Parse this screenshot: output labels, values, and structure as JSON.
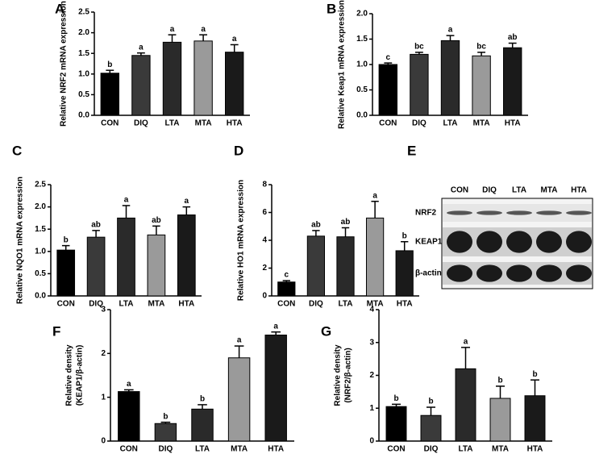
{
  "chart_data": [
    {
      "type": "bar",
      "label": "A",
      "ylabel": [
        "Relative NRF2 mRNA expression"
      ],
      "categories": [
        "CON",
        "DIQ",
        "LTA",
        "MTA",
        "HTA"
      ],
      "values": [
        1.02,
        1.45,
        1.77,
        1.8,
        1.53
      ],
      "errors": [
        0.07,
        0.06,
        0.18,
        0.15,
        0.18
      ],
      "letters": [
        "b",
        "a",
        "a",
        "a",
        "a"
      ],
      "colors": [
        "#000000",
        "#3a3a3a",
        "#2a2a2a",
        "#9a9a9a",
        "#1a1a1a"
      ],
      "ylim": [
        0,
        2.5
      ],
      "yticks": [
        {
          "value": 0,
          "label": "0.0"
        },
        0.5,
        {
          "value": 1,
          "label": "1.0"
        },
        1.5,
        {
          "value": 2,
          "label": "2.0"
        },
        2.5
      ]
    },
    {
      "type": "bar",
      "label": "B",
      "ylabel": [
        "Relative Keap1 mRNA expression"
      ],
      "categories": [
        "CON",
        "DIQ",
        "LTA",
        "MTA",
        "HTA"
      ],
      "values": [
        1.0,
        1.2,
        1.47,
        1.17,
        1.33
      ],
      "errors": [
        0.03,
        0.04,
        0.1,
        0.07,
        0.09
      ],
      "letters": [
        "c",
        "bc",
        "a",
        "bc",
        "ab"
      ],
      "colors": [
        "#000000",
        "#3a3a3a",
        "#2a2a2a",
        "#9a9a9a",
        "#1a1a1a"
      ],
      "ylim": [
        0,
        2
      ],
      "yticks": [
        {
          "value": 0,
          "label": "0.0"
        },
        0.5,
        {
          "value": 1,
          "label": "1.0"
        },
        1.5,
        {
          "value": 2,
          "label": "2.0"
        }
      ]
    },
    {
      "type": "bar",
      "label": "C",
      "ylabel": [
        "Relative NQO1 mRNA expression"
      ],
      "categories": [
        "CON",
        "DIQ",
        "LTA",
        "MTA",
        "HTA"
      ],
      "values": [
        1.03,
        1.32,
        1.75,
        1.37,
        1.82
      ],
      "errors": [
        0.1,
        0.15,
        0.28,
        0.2,
        0.18
      ],
      "letters": [
        "b",
        "ab",
        "a",
        "ab",
        "a"
      ],
      "colors": [
        "#000000",
        "#3a3a3a",
        "#2a2a2a",
        "#9a9a9a",
        "#1a1a1a"
      ],
      "ylim": [
        0,
        2.5
      ],
      "yticks": [
        {
          "value": 0,
          "label": "0.0"
        },
        0.5,
        {
          "value": 1,
          "label": "1.0"
        },
        1.5,
        {
          "value": 2,
          "label": "2.0"
        },
        2.5
      ]
    },
    {
      "type": "bar",
      "label": "D",
      "ylabel": [
        "Relative HO1 mRNA expression"
      ],
      "categories": [
        "CON",
        "DIQ",
        "LTA",
        "MTA",
        "HTA"
      ],
      "values": [
        1.0,
        4.3,
        4.25,
        5.6,
        3.25
      ],
      "errors": [
        0.1,
        0.4,
        0.65,
        1.2,
        0.65
      ],
      "letters": [
        "c",
        "ab",
        "ab",
        "a",
        "b"
      ],
      "colors": [
        "#000000",
        "#3a3a3a",
        "#2a2a2a",
        "#9a9a9a",
        "#1a1a1a"
      ],
      "ylim": [
        0,
        8
      ],
      "yticks": [
        0,
        2,
        4,
        6,
        8
      ]
    },
    {
      "type": "bar",
      "label": "F",
      "ylabel": [
        "Relative density",
        "(KEAP1/β-actin)"
      ],
      "categories": [
        "CON",
        "DIQ",
        "LTA",
        "MTA",
        "HTA"
      ],
      "values": [
        1.13,
        0.4,
        0.73,
        1.9,
        2.42
      ],
      "errors": [
        0.04,
        0.03,
        0.1,
        0.27,
        0.07
      ],
      "letters": [
        "a",
        "b",
        "b",
        "a",
        "a"
      ],
      "colors": [
        "#000000",
        "#3a3a3a",
        "#2a2a2a",
        "#9a9a9a",
        "#1a1a1a"
      ],
      "ylim": [
        0,
        3
      ],
      "yticks": [
        0,
        1,
        2,
        3
      ]
    },
    {
      "type": "bar",
      "label": "G",
      "ylabel": [
        "Relative density",
        "(NRF2/β-actin)"
      ],
      "categories": [
        "CON",
        "DIQ",
        "LTA",
        "MTA",
        "HTA"
      ],
      "values": [
        1.05,
        0.78,
        2.2,
        1.3,
        1.38
      ],
      "errors": [
        0.07,
        0.25,
        0.65,
        0.37,
        0.48
      ],
      "letters": [
        "b",
        "b",
        "a",
        "b",
        "b"
      ],
      "colors": [
        "#000000",
        "#3a3a3a",
        "#2a2a2a",
        "#9a9a9a",
        "#1a1a1a"
      ],
      "ylim": [
        0,
        4
      ],
      "yticks": [
        0,
        1,
        2,
        3,
        4
      ]
    }
  ],
  "blot": {
    "label": "E",
    "lanes": [
      "CON",
      "DIQ",
      "LTA",
      "MTA",
      "HTA"
    ],
    "rows": [
      "NRF2",
      "KEAP1",
      "β-actin"
    ]
  }
}
